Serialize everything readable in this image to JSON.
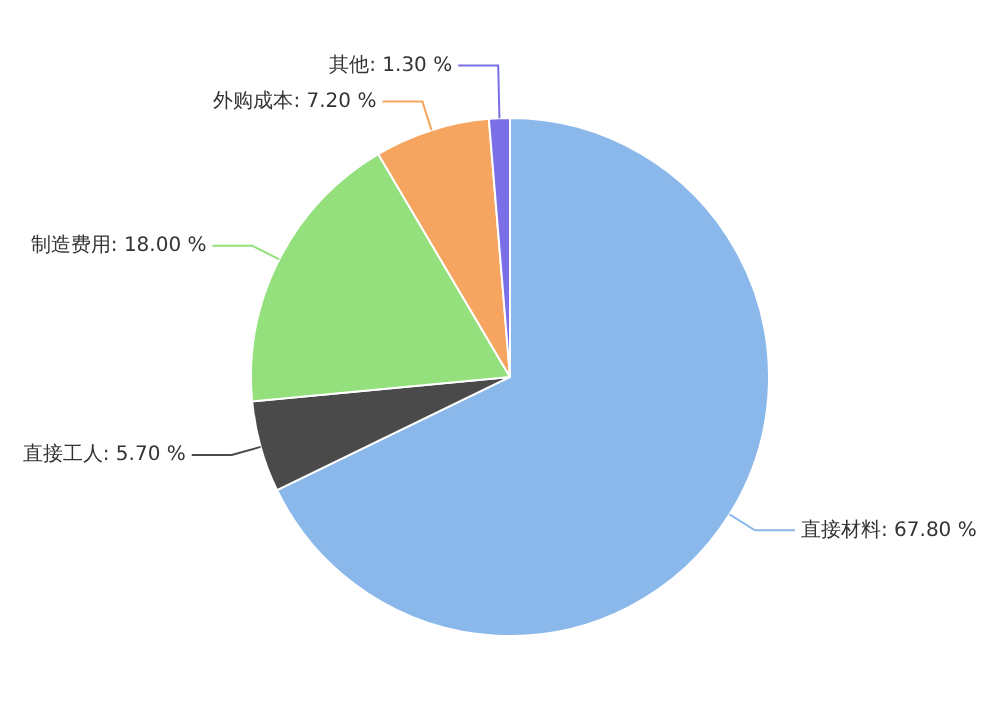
{
  "chart_data": {
    "type": "pie",
    "categories": [
      "直接材料",
      "直接工人",
      "制造费用",
      "外购成本",
      "其他"
    ],
    "values": [
      67.8,
      5.7,
      18.0,
      7.2,
      1.3
    ],
    "value_labels": [
      "67.80 %",
      "5.70 %",
      "18.00 %",
      "7.20 %",
      "1.30 %"
    ],
    "colors": [
      "#8ab8ea",
      "#4a4a4a",
      "#93e07c",
      "#f5a55f",
      "#7b6fe8"
    ],
    "legend": false
  }
}
